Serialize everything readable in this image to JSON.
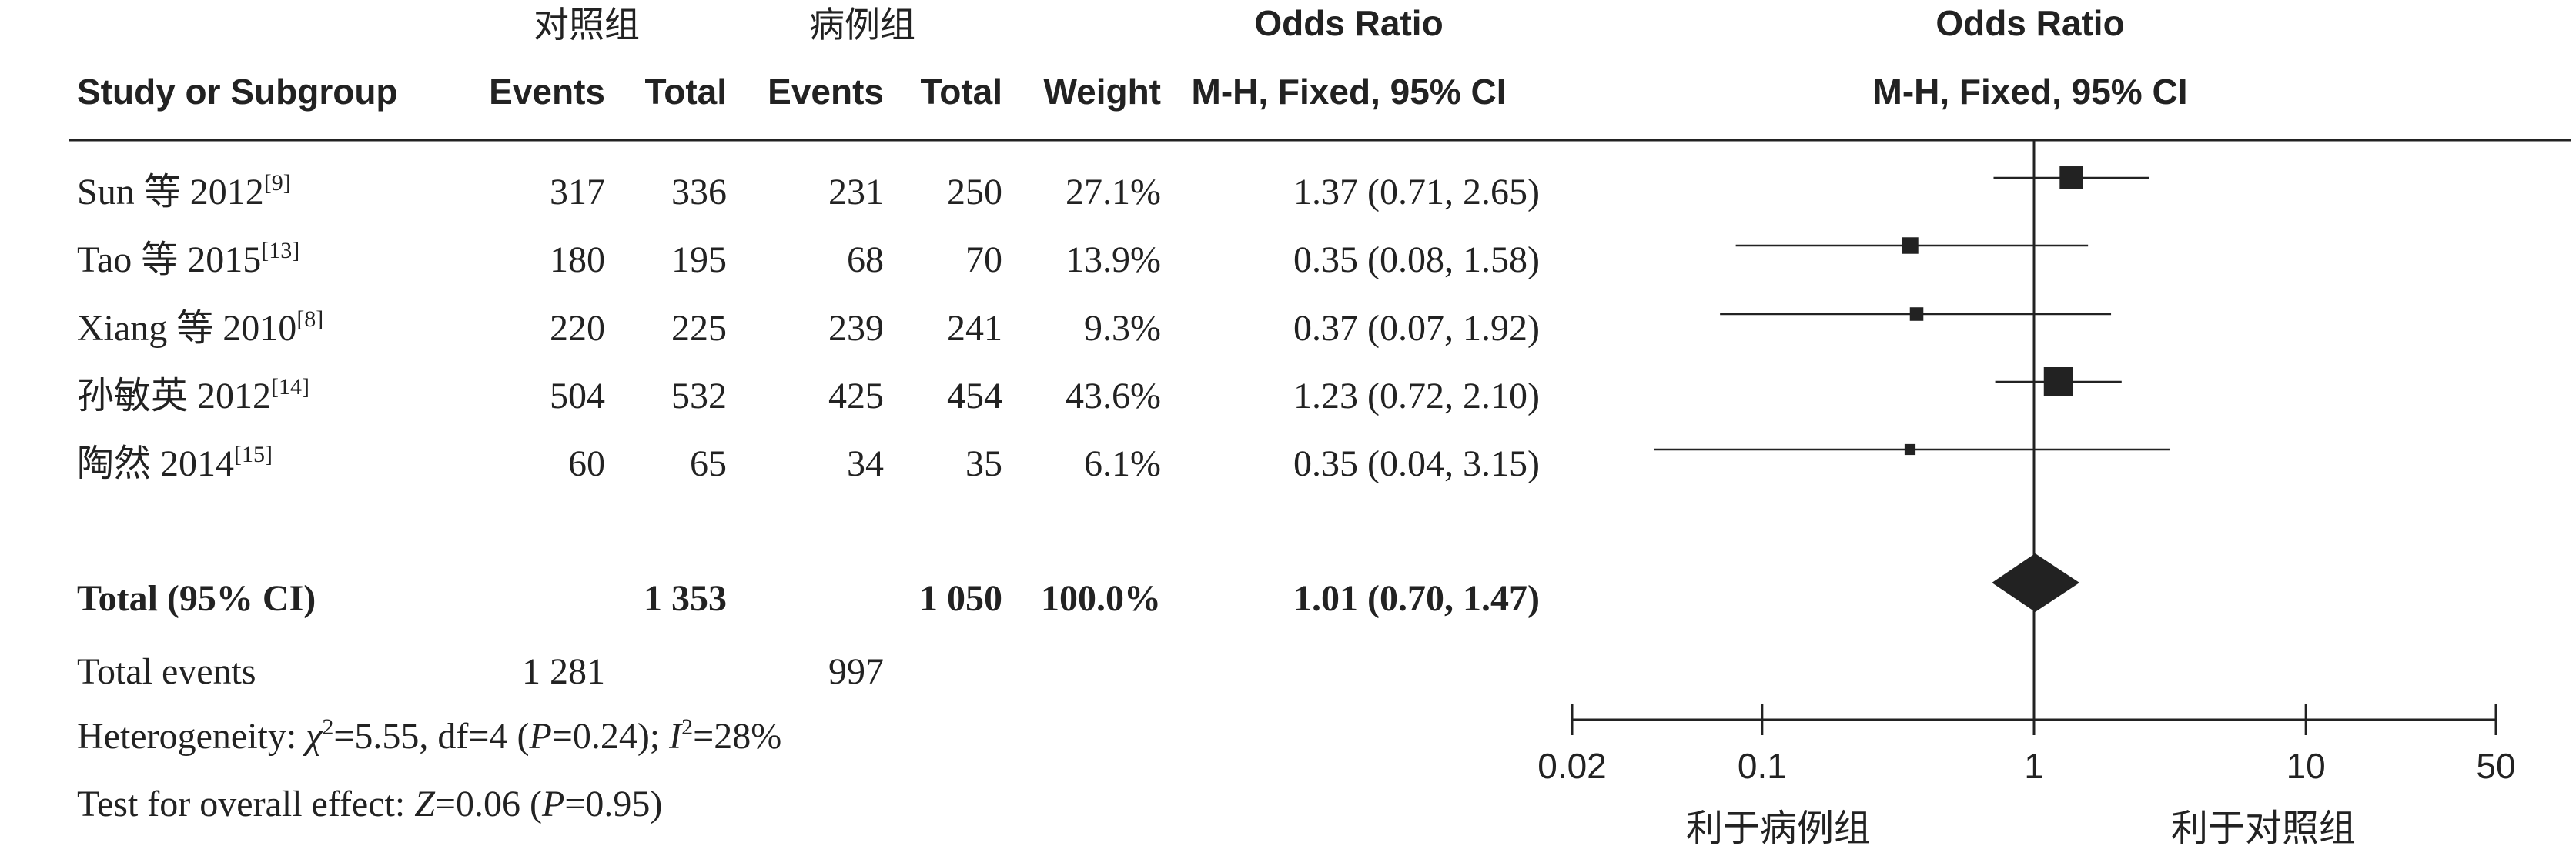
{
  "headers": {
    "group_control": "对照组",
    "group_case": "病例组",
    "study": "Study or Subgroup",
    "events1": "Events",
    "total1": "Total",
    "events2": "Events",
    "total2": "Total",
    "weight": "Weight",
    "or_title": "Odds Ratio",
    "or_method": "M-H, Fixed, 95% CI",
    "plot_title": "Odds Ratio",
    "plot_method": "M-H, Fixed, 95% CI"
  },
  "studies": [
    {
      "name": "Sun 等 2012",
      "ref": "[9]",
      "events1": "317",
      "total1": "336",
      "events2": "231",
      "total2": "250",
      "weight": "27.1%",
      "ci_text": "1.37 (0.71, 2.65)"
    },
    {
      "name": "Tao 等 2015",
      "ref": "[13]",
      "events1": "180",
      "total1": "195",
      "events2": "68",
      "total2": "70",
      "weight": "13.9%",
      "ci_text": "0.35 (0.08, 1.58)"
    },
    {
      "name": "Xiang 等 2010",
      "ref": "[8]",
      "events1": "220",
      "total1": "225",
      "events2": "239",
      "total2": "241",
      "weight": "9.3%",
      "ci_text": "0.37 (0.07, 1.92)"
    },
    {
      "name": "孙敏英 2012",
      "ref": "[14]",
      "events1": "504",
      "total1": "532",
      "events2": "425",
      "total2": "454",
      "weight": "43.6%",
      "ci_text": "1.23 (0.72, 2.10)"
    },
    {
      "name": "陶然 2014",
      "ref": "[15]",
      "events1": "60",
      "total1": "65",
      "events2": "34",
      "total2": "35",
      "weight": "6.1%",
      "ci_text": "0.35 (0.04, 3.15)"
    }
  ],
  "total_row": {
    "label": "Total (95% CI)",
    "total1": "1 353",
    "total2": "1 050",
    "weight": "100.0%",
    "ci_text": "1.01 (0.70, 1.47)"
  },
  "events_row": {
    "label": "Total events",
    "events1": "1 281",
    "events2": "997"
  },
  "heterogeneity": {
    "prefix": "Heterogeneity: ",
    "chi_symbol": "χ",
    "chi_sup": "2",
    "chi_value": "=5.55, df=4 (",
    "p_symbol": "P",
    "p_value": "=0.24); ",
    "i_symbol": "I",
    "i_sup": "2",
    "i_value": "=28%"
  },
  "overall_effect": {
    "prefix": "Test for overall effect: ",
    "z_symbol": "Z",
    "z_value": "=0.06 (",
    "p_symbol": "P",
    "p_value": "=0.95)"
  },
  "chart_data": {
    "type": "forest",
    "scale": "log",
    "xlim": [
      0.02,
      50
    ],
    "ticks": [
      0.02,
      0.1,
      1,
      10,
      50
    ],
    "tick_labels": [
      "0.02",
      "0.1",
      "1",
      "10",
      "50"
    ],
    "null_value": 1,
    "favours_left": "利于病例组",
    "favours_right": "利于对照组",
    "series": [
      {
        "or": 1.37,
        "lower": 0.71,
        "upper": 2.65,
        "weight": 27.1
      },
      {
        "or": 0.35,
        "lower": 0.08,
        "upper": 1.58,
        "weight": 13.9
      },
      {
        "or": 0.37,
        "lower": 0.07,
        "upper": 1.92,
        "weight": 9.3
      },
      {
        "or": 1.23,
        "lower": 0.72,
        "upper": 2.1,
        "weight": 43.6
      },
      {
        "or": 0.35,
        "lower": 0.04,
        "upper": 3.15,
        "weight": 6.1
      }
    ],
    "pooled": {
      "or": 1.01,
      "lower": 0.7,
      "upper": 1.47
    },
    "colors": {
      "ink": "#222222",
      "background": "#ffffff"
    }
  }
}
